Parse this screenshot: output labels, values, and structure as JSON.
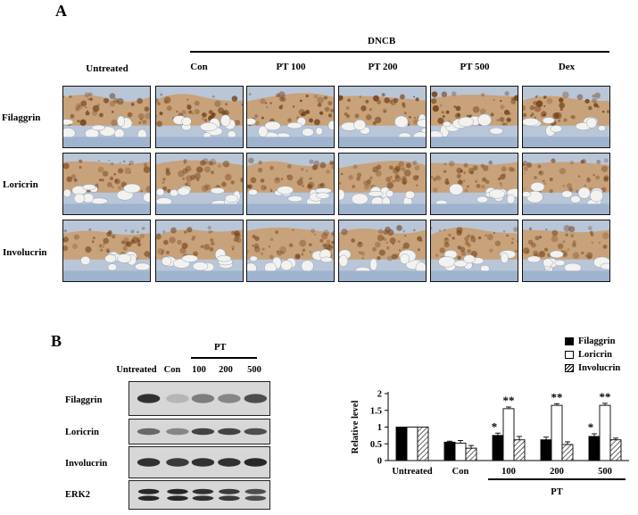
{
  "panel_a": {
    "letter": "A",
    "treatment_label": "DNCB",
    "columns": [
      "Untreated",
      "Con",
      "PT 100",
      "PT 200",
      "PT 500",
      "Dex"
    ],
    "rows": [
      "Filaggrin",
      "Loricrin",
      "Involucrin"
    ]
  },
  "panel_b": {
    "letter": "B",
    "blot": {
      "treatment_label": "PT",
      "lanes": [
        "Untreated",
        "Con",
        "100",
        "200",
        "500"
      ],
      "rows": [
        "Filaggrin",
        "Loricrin",
        "Involucrin",
        "ERK2"
      ]
    },
    "legend": [
      {
        "name": "Filaggrin",
        "fill": "#000000"
      },
      {
        "name": "Loricrin",
        "fill": "#ffffff"
      },
      {
        "name": "Involucrin",
        "fill": "hatch"
      }
    ]
  },
  "chart_data": {
    "type": "bar",
    "ylabel": "Relative level",
    "ylim": [
      0,
      2
    ],
    "yticks": [
      0,
      0.5,
      1,
      1.5,
      2
    ],
    "categories": [
      "Untreated",
      "Con",
      "100",
      "200",
      "500"
    ],
    "group_label": "PT",
    "series": [
      {
        "name": "Filaggrin",
        "values": [
          1.0,
          0.55,
          0.75,
          0.62,
          0.72
        ],
        "errors": [
          0,
          0.03,
          0.07,
          0.08,
          0.08
        ]
      },
      {
        "name": "Loricrin",
        "values": [
          1.0,
          0.52,
          1.55,
          1.65,
          1.65
        ],
        "errors": [
          0,
          0.08,
          0.05,
          0.05,
          0.06
        ]
      },
      {
        "name": "Involucrin",
        "values": [
          1.0,
          0.37,
          0.62,
          0.48,
          0.62
        ],
        "errors": [
          0,
          0.08,
          0.1,
          0.08,
          0.05
        ]
      }
    ],
    "annotations": [
      {
        "category": "100",
        "series": "Filaggrin",
        "text": "*"
      },
      {
        "category": "100",
        "series": "Loricrin",
        "text": "**"
      },
      {
        "category": "200",
        "series": "Loricrin",
        "text": "**"
      },
      {
        "category": "500",
        "series": "Filaggrin",
        "text": "*"
      },
      {
        "category": "500",
        "series": "Loricrin",
        "text": "**"
      }
    ],
    "colors": {
      "filaggrin": "#000000",
      "loricrin": "#ffffff",
      "involucrin_hatch": "#000000"
    }
  }
}
